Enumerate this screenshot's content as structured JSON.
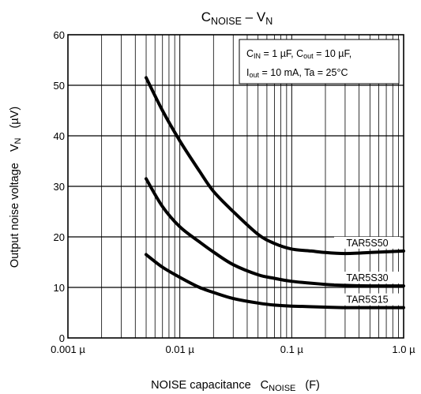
{
  "chart_data": {
    "type": "line",
    "title": {
      "main": "C",
      "main_sub": "NOISE",
      "dash": " – V",
      "dash_sub": "N"
    },
    "xlabel": {
      "main": "NOISE capacitance",
      "sym": "C",
      "sym_sub": "NOISE",
      "unit": "(F)"
    },
    "ylabel": {
      "main": "Output noise voltage",
      "sym": "V",
      "sym_sub": "N",
      "unit": "(µV)"
    },
    "x_scale": "log",
    "xlim": [
      0.001,
      1.0
    ],
    "ylim": [
      0,
      60
    ],
    "x_tick_labels": [
      "0.001 µ",
      "0.01 µ",
      "0.1 µ",
      "1.0 µ"
    ],
    "y_tick_labels": [
      "0",
      "10",
      "20",
      "30",
      "40",
      "50",
      "60"
    ],
    "grid": true,
    "conditions": {
      "line1": {
        "a": "C",
        "a_sub": "IN",
        "b": " = 1 µF, C",
        "b_sub": "out",
        "c": " = 10 µF,"
      },
      "line2": {
        "a": "I",
        "a_sub": "out",
        "b": " = 10 mA, Ta = 25°C"
      }
    },
    "series": [
      {
        "name": "TAR5S50",
        "x": [
          0.005,
          0.007,
          0.01,
          0.015,
          0.02,
          0.03,
          0.05,
          0.07,
          0.1,
          0.15,
          0.2,
          0.3,
          0.5,
          1.0
        ],
        "y": [
          51.5,
          45,
          39,
          33,
          29,
          25,
          20.5,
          18.7,
          17.6,
          17.2,
          16.9,
          16.7,
          16.9,
          17.2
        ]
      },
      {
        "name": "TAR5S30",
        "x": [
          0.005,
          0.007,
          0.01,
          0.015,
          0.02,
          0.03,
          0.05,
          0.07,
          0.1,
          0.2,
          0.3,
          0.5,
          1.0
        ],
        "y": [
          31.5,
          26,
          22,
          19,
          17,
          14.5,
          12.5,
          11.8,
          11.2,
          10.6,
          10.4,
          10.3,
          10.3
        ]
      },
      {
        "name": "TAR5S15",
        "x": [
          0.005,
          0.007,
          0.01,
          0.015,
          0.02,
          0.03,
          0.05,
          0.07,
          0.1,
          0.2,
          0.3,
          0.5,
          1.0
        ],
        "y": [
          16.5,
          14,
          12,
          10,
          9,
          7.8,
          6.9,
          6.5,
          6.3,
          6.1,
          6.0,
          6.0,
          6.0
        ]
      }
    ]
  }
}
